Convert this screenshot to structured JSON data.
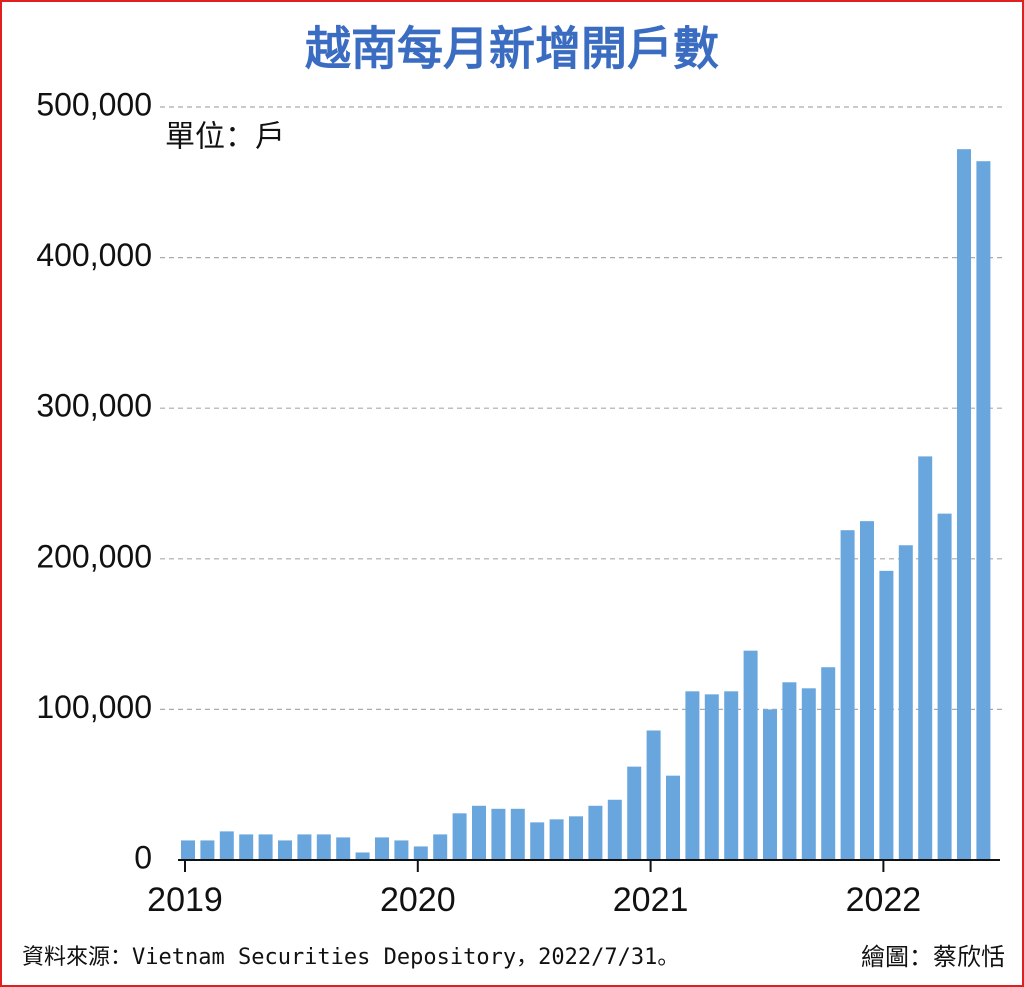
{
  "chart_data": {
    "type": "bar",
    "title": "越南每月新增開戶數",
    "unit": "單位：戶",
    "source": "資料來源：Vietnam Securities Depository，2022/7/31。",
    "credit": "繪圖：蔡欣恬",
    "categories": [
      "2019",
      null,
      null,
      null,
      null,
      null,
      null,
      null,
      null,
      null,
      null,
      null,
      "2020",
      null,
      null,
      null,
      null,
      null,
      null,
      null,
      null,
      null,
      null,
      null,
      "2021",
      null,
      null,
      null,
      null,
      null,
      null,
      null,
      null,
      null,
      null,
      null,
      "2022",
      null,
      null,
      null,
      null,
      null
    ],
    "values": [
      13000,
      13000,
      19000,
      17000,
      17000,
      13000,
      17000,
      17000,
      15000,
      5000,
      15000,
      13000,
      9000,
      17000,
      31000,
      36000,
      34000,
      34000,
      25000,
      27000,
      29000,
      36000,
      40000,
      62000,
      86000,
      56000,
      112000,
      110000,
      112000,
      139000,
      100000,
      118000,
      114000,
      128000,
      219000,
      225000,
      192000,
      209000,
      268000,
      230000,
      472000,
      464000
    ],
    "color": "#6aa6de",
    "ylim": [
      0,
      500000
    ],
    "yticks": [
      0,
      {
        "value": 100000,
        "label": "100,000"
      },
      {
        "value": 200000,
        "label": "200,000"
      },
      {
        "value": 300000,
        "label": "300,000"
      },
      {
        "value": 400000,
        "label": "400,000"
      },
      {
        "value": 500000,
        "label": "500,000"
      }
    ],
    "grid": true
  }
}
